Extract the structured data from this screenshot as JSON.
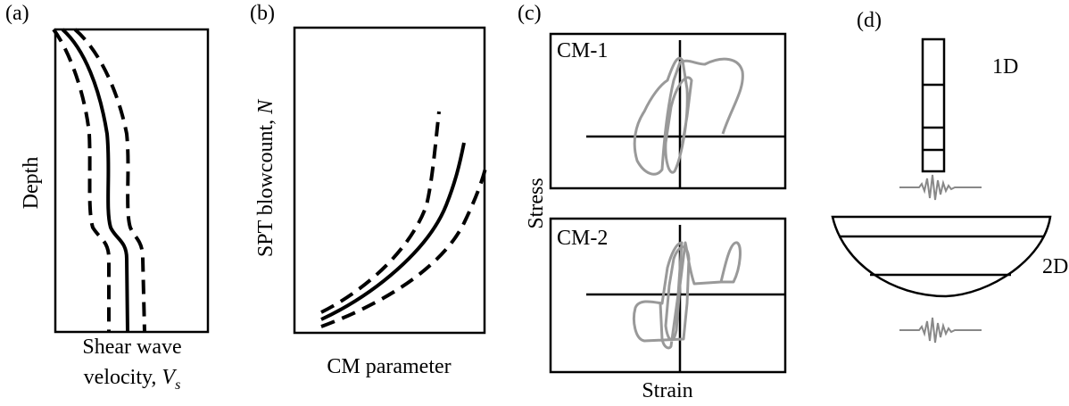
{
  "panels": [
    {
      "tag": "(a)",
      "y_label": "Depth",
      "x_label": {
        "line1": "Shear wave",
        "line2": "velocity, ",
        "symbol": "V",
        "subscript": "s"
      }
    },
    {
      "tag": "(b)",
      "y_label": {
        "text": "SPT blowcount, ",
        "symbol": "N"
      },
      "x_label": "CM parameter"
    },
    {
      "tag": "(c)",
      "top_box": "CM-1",
      "bottom_box": "CM-2",
      "y_label": "Stress",
      "x_label": "Strain"
    },
    {
      "tag": "(d)",
      "top_label": "1D",
      "bottom_label": "2D"
    }
  ]
}
